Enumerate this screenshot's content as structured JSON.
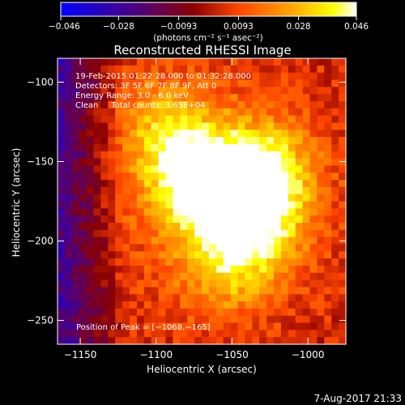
{
  "chart_data": {
    "type": "heatmap",
    "title": "Reconstructed RHESSI Image",
    "xlabel": "Heliocentric X (arcsec)",
    "ylabel": "Heliocentric Y (arcsec)",
    "xlim": [
      -1165,
      -975
    ],
    "ylim": [
      -265,
      -85
    ],
    "x_ticks": [
      -1150,
      -1100,
      -1050,
      -1000
    ],
    "y_ticks": [
      -100,
      -150,
      -200,
      -250
    ],
    "x_tick_labels": [
      "−1150",
      "−1100",
      "−1050",
      "−1000"
    ],
    "y_tick_labels": [
      "−100",
      "−150",
      "−200",
      "−250"
    ],
    "colorbar": {
      "range": [
        -0.046,
        0.046
      ],
      "ticks": [
        -0.046,
        -0.028,
        -0.0093,
        0.0093,
        0.028,
        0.046
      ],
      "tick_labels": [
        "−0.046",
        "−0.028",
        "−0.0093",
        "0.0093",
        "0.028",
        "0.046"
      ],
      "units": "(photons cm⁻² s⁻¹ asec⁻²)",
      "colors": [
        "#0000ff",
        "#4b0082",
        "#8b0000",
        "#ff4500",
        "#ffa500",
        "#ffff00",
        "#ffffff"
      ]
    },
    "annotations": [
      "19-Feb-2015 01:22:28.000 to 01:32:28.000",
      "Detectors: 3F 5F 6F 7F 8F 9F, Att 0",
      "Energy Range: 3.0 - 6.0 keV",
      "Clean     Total counts: 3.65E+04"
    ],
    "peak_label": "Position of Peak = [−1068,−165]",
    "sources": [
      {
        "x": -1070,
        "y": -163,
        "value": 0.046
      },
      {
        "x": -1030,
        "y": -158,
        "value": 0.036
      },
      {
        "x": -1035,
        "y": -190,
        "value": 0.028
      },
      {
        "x": -1095,
        "y": -130,
        "value": 0.022
      },
      {
        "x": -1055,
        "y": -215,
        "value": 0.02
      }
    ]
  },
  "footer": {
    "date": "7-Aug-2017 21:33"
  }
}
